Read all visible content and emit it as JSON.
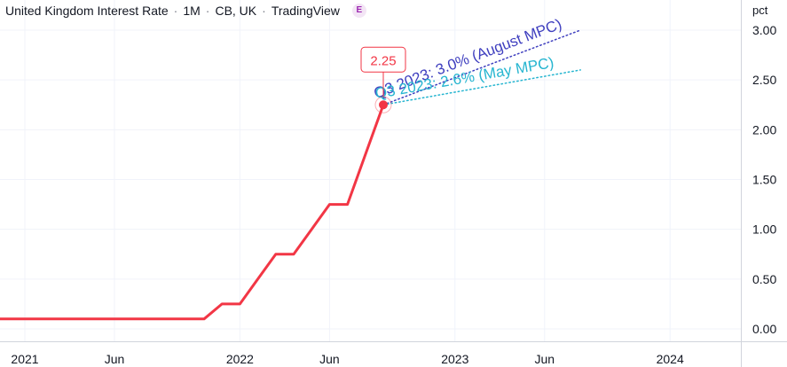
{
  "header": {
    "title": "United Kingdom Interest Rate",
    "interval": "1M",
    "source": "CB, UK",
    "platform": "TradingView",
    "badge": "E"
  },
  "colors": {
    "series": "#f23645",
    "august_annotation": "#3f3fbf",
    "may_annotation": "#26b5d0",
    "grid": "#f0f3fa",
    "axis_text": "#131722"
  },
  "chart_data": {
    "type": "line",
    "title": "United Kingdom Interest Rate",
    "ylabel": "pct",
    "ylim": [
      0,
      3.0
    ],
    "y_ticks": [
      "0.00",
      "0.50",
      "1.00",
      "1.50",
      "2.00",
      "2.50",
      "3.00"
    ],
    "x_ticks": [
      "2021",
      "Jun",
      "2022",
      "Jun",
      "2023",
      "Jun",
      "2024"
    ],
    "series": [
      {
        "values": [
          {
            "x": "2020-12",
            "y": 0.1
          },
          {
            "x": "2021-01",
            "y": 0.1
          },
          {
            "x": "2021-02",
            "y": 0.1
          },
          {
            "x": "2021-03",
            "y": 0.1
          },
          {
            "x": "2021-04",
            "y": 0.1
          },
          {
            "x": "2021-05",
            "y": 0.1
          },
          {
            "x": "2021-06",
            "y": 0.1
          },
          {
            "x": "2021-07",
            "y": 0.1
          },
          {
            "x": "2021-08",
            "y": 0.1
          },
          {
            "x": "2021-09",
            "y": 0.1
          },
          {
            "x": "2021-10",
            "y": 0.1
          },
          {
            "x": "2021-11",
            "y": 0.1
          },
          {
            "x": "2021-12",
            "y": 0.25
          },
          {
            "x": "2022-01",
            "y": 0.25
          },
          {
            "x": "2022-02",
            "y": 0.5
          },
          {
            "x": "2022-03",
            "y": 0.75
          },
          {
            "x": "2022-04",
            "y": 0.75
          },
          {
            "x": "2022-05",
            "y": 1.0
          },
          {
            "x": "2022-06",
            "y": 1.25
          },
          {
            "x": "2022-07",
            "y": 1.25
          },
          {
            "x": "2022-08",
            "y": 1.75
          },
          {
            "x": "2022-09",
            "y": 2.25
          }
        ]
      }
    ],
    "last_value_label": "2.25",
    "annotations": [
      {
        "text": "Q3 2023: 3.0% (August MPC)",
        "from": {
          "x": "2022-09",
          "y": 2.25
        },
        "to": {
          "x": "2023-08",
          "y": 3.0
        },
        "style": "dotted"
      },
      {
        "text": "Q3 2023: 2.6% (May MPC)",
        "from": {
          "x": "2022-09",
          "y": 2.25
        },
        "to": {
          "x": "2023-08",
          "y": 2.6
        },
        "style": "dotted"
      }
    ]
  }
}
